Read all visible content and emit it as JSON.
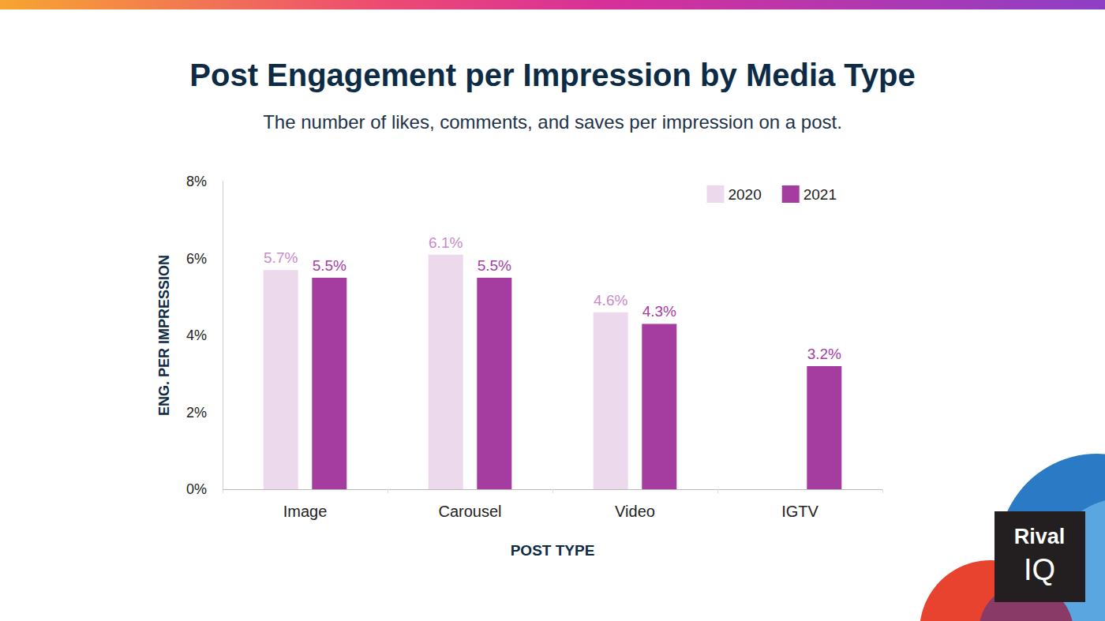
{
  "chart_data": {
    "type": "bar",
    "title": "Post Engagement per Impression by Media Type",
    "subtitle": "The number of likes, comments, and saves per impression on a post.",
    "x_label": "POST TYPE",
    "y_label": "ENG. PER IMPRESSION",
    "categories": [
      "Image",
      "Carousel",
      "Video",
      "IGTV"
    ],
    "series": [
      {
        "name": "2020",
        "color": "#ecd9ec",
        "values": [
          5.7,
          6.1,
          4.6,
          null
        ],
        "value_labels": [
          "5.7%",
          "6.1%",
          "4.6%",
          null
        ]
      },
      {
        "name": "2021",
        "color": "#a43d9f",
        "values": [
          5.5,
          5.5,
          4.3,
          3.2
        ],
        "value_labels": [
          "5.5%",
          "5.5%",
          "4.3%",
          "3.2%"
        ]
      }
    ],
    "ylim": [
      0,
      8
    ],
    "yticks": [
      {
        "value": 0,
        "label": "0%"
      },
      {
        "value": 2,
        "label": "2%"
      },
      {
        "value": 4,
        "label": "4%"
      },
      {
        "value": 6,
        "label": "6%"
      },
      {
        "value": 8,
        "label": "8%"
      }
    ],
    "grid": false,
    "legend": "top-right",
    "data_labels": true,
    "annotations": [
      "Rival",
      "IQ"
    ]
  }
}
